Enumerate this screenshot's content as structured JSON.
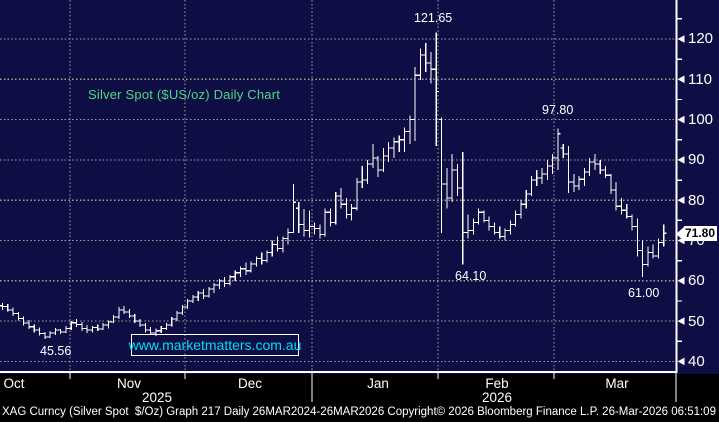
{
  "title": {
    "text": "Silver Spot ($US/oz) Daily Chart"
  },
  "watermark": {
    "link_text": "www.marketmatters.com.au"
  },
  "price_axis": {
    "ticks": [
      "120",
      "110",
      "100",
      "90",
      "80",
      "70",
      "60",
      "50",
      "40"
    ],
    "last_price_label": "71.80"
  },
  "time_axis": {
    "months": [
      "Oct",
      "Nov",
      "Dec",
      "Jan",
      "Feb",
      "Mar"
    ],
    "years": [
      "2025",
      "2026"
    ]
  },
  "annotations": {
    "peak_high": "121.65",
    "feb_high": "97.80",
    "feb_low": "64.10",
    "mar_low": "61.00",
    "oct_low": "45.56"
  },
  "footer": {
    "left": "XAG Curncy (Silver Spot  $/Oz) Graph 217 Daily 26MAR2024-26MAR2026",
    "center": "Copyright© 2026 Bloomberg Finance L.P.",
    "right": "26-Mar-2026 06:51:09"
  },
  "colors": {
    "background": "#0e0e44",
    "bottom_band": "#000000",
    "gridline": "#a4a296",
    "bars": "#ffffff",
    "title_green": "#4bd985",
    "watermark_cyan": "#00dff7",
    "annotation_white": "#ffffff",
    "price_bug_bg": "#ffffff",
    "price_bug_text": "#000000"
  },
  "chart_data": {
    "type": "ohlc_bar",
    "title": "Silver Spot ($US/oz) Daily Chart",
    "series_name": "XAG Curncy (Silver Spot $/Oz)",
    "frequency": "Daily",
    "visible_range": "Oct 2025 - 26 Mar 2026",
    "ylim": [
      37.5,
      129.5
    ],
    "yticks": [
      40,
      50,
      60,
      70,
      80,
      90,
      100,
      110,
      120
    ],
    "x_months": [
      "Oct 2025",
      "Nov 2025",
      "Dec 2025",
      "Jan 2026",
      "Feb 2026",
      "Mar 2026"
    ],
    "grid": true,
    "key_levels": {
      "all_time_high": 121.65,
      "secondary_high": 97.8,
      "crash_low": 64.1,
      "march_low": 61.0,
      "october_low": 45.56,
      "last_price": 71.8
    },
    "bar_count": 126,
    "bars_ohlc": [
      [
        53.8,
        54.5,
        52.8,
        53.6
      ],
      [
        53.6,
        54.2,
        52.4,
        52.8
      ],
      [
        52.8,
        53.4,
        51.3,
        51.9
      ],
      [
        51.9,
        52.3,
        50.1,
        50.6
      ],
      [
        50.6,
        51.2,
        48.9,
        49.5
      ],
      [
        49.5,
        50.3,
        48.1,
        48.6
      ],
      [
        48.6,
        49.2,
        47.2,
        47.8
      ],
      [
        47.8,
        48.4,
        46.4,
        46.9
      ],
      [
        46.9,
        47.3,
        45.56,
        46.1
      ],
      [
        46.1,
        47.6,
        45.8,
        47.0
      ],
      [
        47.0,
        48.3,
        46.6,
        47.8
      ],
      [
        47.8,
        48.1,
        46.8,
        47.3
      ],
      [
        47.3,
        48.8,
        47.0,
        48.2
      ],
      [
        48.2,
        50.0,
        47.8,
        49.6
      ],
      [
        49.6,
        50.5,
        48.5,
        49.2
      ],
      [
        49.2,
        49.8,
        47.5,
        48.2
      ],
      [
        48.2,
        49.0,
        47.0,
        47.8
      ],
      [
        47.8,
        48.8,
        47.2,
        48.4
      ],
      [
        48.4,
        49.2,
        47.5,
        48.0
      ],
      [
        48.0,
        49.5,
        47.8,
        49.0
      ],
      [
        49.0,
        50.2,
        48.2,
        49.8
      ],
      [
        49.8,
        51.5,
        49.5,
        51.0
      ],
      [
        51.0,
        53.5,
        50.5,
        52.8
      ],
      [
        52.8,
        53.8,
        51.8,
        52.3
      ],
      [
        52.3,
        53.0,
        50.8,
        51.3
      ],
      [
        51.3,
        51.8,
        49.5,
        50.0
      ],
      [
        50.0,
        50.5,
        48.5,
        49.0
      ],
      [
        49.0,
        49.5,
        47.2,
        47.8
      ],
      [
        47.8,
        48.5,
        46.5,
        47.0
      ],
      [
        47.0,
        48.2,
        46.3,
        47.6
      ],
      [
        47.6,
        48.8,
        47.0,
        48.2
      ],
      [
        48.2,
        49.5,
        47.8,
        49.0
      ],
      [
        49.0,
        51.0,
        48.6,
        50.5
      ],
      [
        50.5,
        52.5,
        50.0,
        52.0
      ],
      [
        52.0,
        54.0,
        51.5,
        53.5
      ],
      [
        53.5,
        55.5,
        53.0,
        55.0
      ],
      [
        55.0,
        56.5,
        54.5,
        56.0
      ],
      [
        56.0,
        57.5,
        55.0,
        57.0
      ],
      [
        57.0,
        58.0,
        55.5,
        56.2
      ],
      [
        56.2,
        58.5,
        55.8,
        58.0
      ],
      [
        58.0,
        59.5,
        57.0,
        59.0
      ],
      [
        59.0,
        60.5,
        58.0,
        60.0
      ],
      [
        60.0,
        61.0,
        58.5,
        59.3
      ],
      [
        59.3,
        61.5,
        58.8,
        61.0
      ],
      [
        61.0,
        62.5,
        60.0,
        62.0
      ],
      [
        62.0,
        63.5,
        61.0,
        63.0
      ],
      [
        63.0,
        64.5,
        61.5,
        62.5
      ],
      [
        62.5,
        64.8,
        62.0,
        64.2
      ],
      [
        64.2,
        66.0,
        63.5,
        65.5
      ],
      [
        65.5,
        67.0,
        64.0,
        65.0
      ],
      [
        65.0,
        67.5,
        64.5,
        67.0
      ],
      [
        67.0,
        70.0,
        66.0,
        69.0
      ],
      [
        69.0,
        71.0,
        67.3,
        68.0
      ],
      [
        68.0,
        71.0,
        67.0,
        70.5
      ],
      [
        70.5,
        73.0,
        69.0,
        72.0
      ],
      [
        72.0,
        84.0,
        71.8,
        79.5
      ],
      [
        78.0,
        79.5,
        71.8,
        74.0
      ],
      [
        74.0,
        77.8,
        71.0,
        72.5
      ],
      [
        72.5,
        77.4,
        70.7,
        73.5
      ],
      [
        73.5,
        74.5,
        71.5,
        73.0
      ],
      [
        73.0,
        74.0,
        70.5,
        71.5
      ],
      [
        71.5,
        78.0,
        71.0,
        77.0
      ],
      [
        77.0,
        78.0,
        73.5,
        74.5
      ],
      [
        74.5,
        82.0,
        74.0,
        81.0
      ],
      [
        81.0,
        83.0,
        78.0,
        79.0
      ],
      [
        79.0,
        80.5,
        75.5,
        76.5
      ],
      [
        76.5,
        79.0,
        75.0,
        78.0
      ],
      [
        78.0,
        85.5,
        77.5,
        84.5
      ],
      [
        84.5,
        88.5,
        83.0,
        85.0
      ],
      [
        85.0,
        90.0,
        84.0,
        89.0
      ],
      [
        89.0,
        94.0,
        88.0,
        90.5
      ],
      [
        90.5,
        91.0,
        85.8,
        87.5
      ],
      [
        87.5,
        93.0,
        87.0,
        91.0
      ],
      [
        91.0,
        94.5,
        89.5,
        93.0
      ],
      [
        93.0,
        95.5,
        90.5,
        94.5
      ],
      [
        94.5,
        96.0,
        92.0,
        95.0
      ],
      [
        95.0,
        98.0,
        92.0,
        97.0
      ],
      [
        97.0,
        101.0,
        94.0,
        100.0
      ],
      [
        100.0,
        113.0,
        94.7,
        111.0
      ],
      [
        111.0,
        117.7,
        109.8,
        116.0
      ],
      [
        116.0,
        119.0,
        111.8,
        114.0
      ],
      [
        114.0,
        116.8,
        109.0,
        112.5
      ],
      [
        112.5,
        121.65,
        93.5,
        107.0
      ],
      [
        100.0,
        100.5,
        71.9,
        84.0
      ],
      [
        84.0,
        88.0,
        78.0,
        80.5
      ],
      [
        80.5,
        91.5,
        79.5,
        87.5
      ],
      [
        87.5,
        89.0,
        81.0,
        83.0
      ],
      [
        83.0,
        92.0,
        64.1,
        72.0
      ],
      [
        72.0,
        76.5,
        70.5,
        72.5
      ],
      [
        72.5,
        75.5,
        71.5,
        74.5
      ],
      [
        74.5,
        78.0,
        74.0,
        77.0
      ],
      [
        77.0,
        77.5,
        74.5,
        75.0
      ],
      [
        75.0,
        76.0,
        72.5,
        73.5
      ],
      [
        73.5,
        74.5,
        71.5,
        72.0
      ],
      [
        72.0,
        73.5,
        70.5,
        71.0
      ],
      [
        71.0,
        73.0,
        70.0,
        72.5
      ],
      [
        72.5,
        75.0,
        71.5,
        74.0
      ],
      [
        74.0,
        77.5,
        73.5,
        76.5
      ],
      [
        76.5,
        80.0,
        75.5,
        79.0
      ],
      [
        79.0,
        82.5,
        78.0,
        81.5
      ],
      [
        81.5,
        86.0,
        81.0,
        85.0
      ],
      [
        85.0,
        87.5,
        83.5,
        85.5
      ],
      [
        85.5,
        88.0,
        84.0,
        86.5
      ],
      [
        86.5,
        90.0,
        85.0,
        88.5
      ],
      [
        88.5,
        91.5,
        86.5,
        90.5
      ],
      [
        90.5,
        97.8,
        87.5,
        96.5
      ],
      [
        93.0,
        94.0,
        90.5,
        91.5
      ],
      [
        91.5,
        93.5,
        81.8,
        84.5
      ],
      [
        84.5,
        86.5,
        82.0,
        83.5
      ],
      [
        83.5,
        86.0,
        82.5,
        85.2
      ],
      [
        85.2,
        88.0,
        83.5,
        87.0
      ],
      [
        87.0,
        90.5,
        86.0,
        89.5
      ],
      [
        89.5,
        91.5,
        87.5,
        89.0
      ],
      [
        89.0,
        90.0,
        86.5,
        87.5
      ],
      [
        87.5,
        88.5,
        85.5,
        86.2
      ],
      [
        86.2,
        86.5,
        81.5,
        82.5
      ],
      [
        82.5,
        84.5,
        77.5,
        78.5
      ],
      [
        78.5,
        80.5,
        76.5,
        77.5
      ],
      [
        77.5,
        79.0,
        75.5,
        76.0
      ],
      [
        76.0,
        76.5,
        72.5,
        73.5
      ],
      [
        73.5,
        75.5,
        66.0,
        67.5
      ],
      [
        67.5,
        70.0,
        61.0,
        64.0
      ],
      [
        64.0,
        68.5,
        63.5,
        67.0
      ],
      [
        67.0,
        69.0,
        65.5,
        66.2
      ],
      [
        66.2,
        70.5,
        65.5,
        69.5
      ],
      [
        69.5,
        74.0,
        68.5,
        71.8
      ]
    ]
  }
}
